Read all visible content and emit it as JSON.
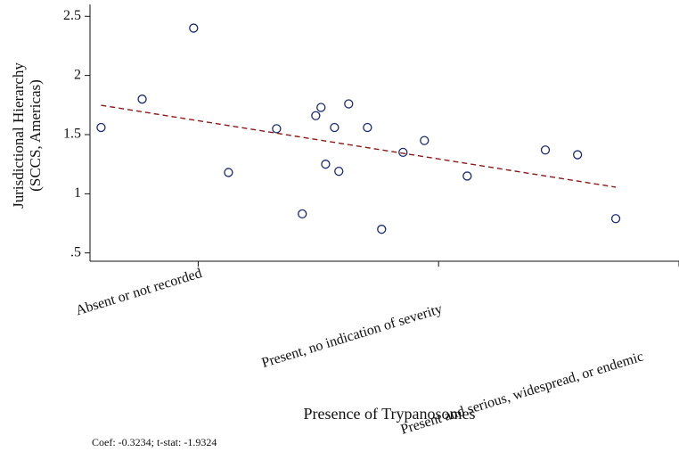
{
  "chart_data": {
    "type": "scatter",
    "x_label": "Presence of Trypanosomes",
    "y_label": [
      "Jurisdictional Hierarchy",
      "(SCCS, Americas)"
    ],
    "note": "Coef: -0.3234; t-stat: -1.9324",
    "x": [
      0.596,
      0.767,
      0.981,
      1.126,
      1.326,
      1.433,
      1.489,
      1.511,
      1.53,
      1.567,
      1.585,
      1.626,
      1.704,
      1.763,
      1.852,
      1.941,
      2.119,
      2.444,
      2.578,
      2.737
    ],
    "values": [
      1.56,
      1.8,
      2.4,
      1.18,
      1.55,
      0.83,
      1.66,
      1.73,
      1.25,
      1.56,
      1.19,
      1.76,
      1.56,
      0.7,
      1.35,
      1.45,
      1.15,
      1.37,
      1.33,
      0.79
    ],
    "color": "#1a2b6b",
    "trend": {
      "x": [
        0.596,
        2.737
      ],
      "values": [
        1.748,
        1.056
      ],
      "color": "#8b1a1a"
    },
    "xlim": [
      0.55,
      3
    ],
    "ylim": [
      0.43,
      2.6
    ],
    "xticks": [
      {
        "value": 1,
        "label": "Absent or not recorded"
      },
      {
        "value": 2,
        "label": "Present, no indication of severity"
      },
      {
        "value": 3,
        "label": "Present and serious, widespread, or endemic"
      }
    ],
    "yticks": [
      {
        "value": 0.5,
        "label": ".5"
      },
      1,
      1.5,
      2,
      2.5
    ]
  }
}
